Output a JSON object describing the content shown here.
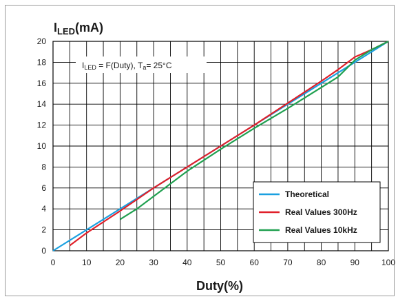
{
  "chart_data": {
    "type": "line",
    "ylabel": {
      "main": "I",
      "sub": "LED",
      "unit": "(mA)"
    },
    "xlabel": "Duty(%)",
    "xlim": [
      0,
      100
    ],
    "ylim": [
      0,
      20
    ],
    "x_ticks": [
      0,
      10,
      20,
      30,
      40,
      50,
      60,
      70,
      80,
      90,
      100
    ],
    "y_ticks": [
      0,
      2,
      4,
      6,
      8,
      10,
      12,
      14,
      16,
      18,
      20
    ],
    "x_grid_step": 5,
    "grid": true,
    "annotation": {
      "p1": "I",
      "s1": "LED",
      "p2": " = F(Duty), T",
      "s2": "a",
      "p3": "= 25°C"
    },
    "legend_position": "lower-right",
    "series": [
      {
        "name": "Theoretical",
        "color": "#1aa0e0",
        "x": [
          0,
          100
        ],
        "y": [
          0,
          20
        ]
      },
      {
        "name": "Real Values 300Hz",
        "color": "#e0202a",
        "x": [
          5,
          10,
          20,
          30,
          40,
          50,
          60,
          70,
          80,
          85,
          90,
          95,
          100
        ],
        "y": [
          0.5,
          1.7,
          3.8,
          6.0,
          8.0,
          10.0,
          12.0,
          14.1,
          16.2,
          17.3,
          18.5,
          19.2,
          20.0
        ]
      },
      {
        "name": "Real Values 10kHz",
        "color": "#20a050",
        "x": [
          20,
          25,
          30,
          40,
          50,
          60,
          70,
          80,
          85,
          90,
          95,
          100
        ],
        "y": [
          3.0,
          4.0,
          5.2,
          7.6,
          9.7,
          11.7,
          13.6,
          15.6,
          16.6,
          18.2,
          19.2,
          20.0
        ]
      }
    ]
  }
}
